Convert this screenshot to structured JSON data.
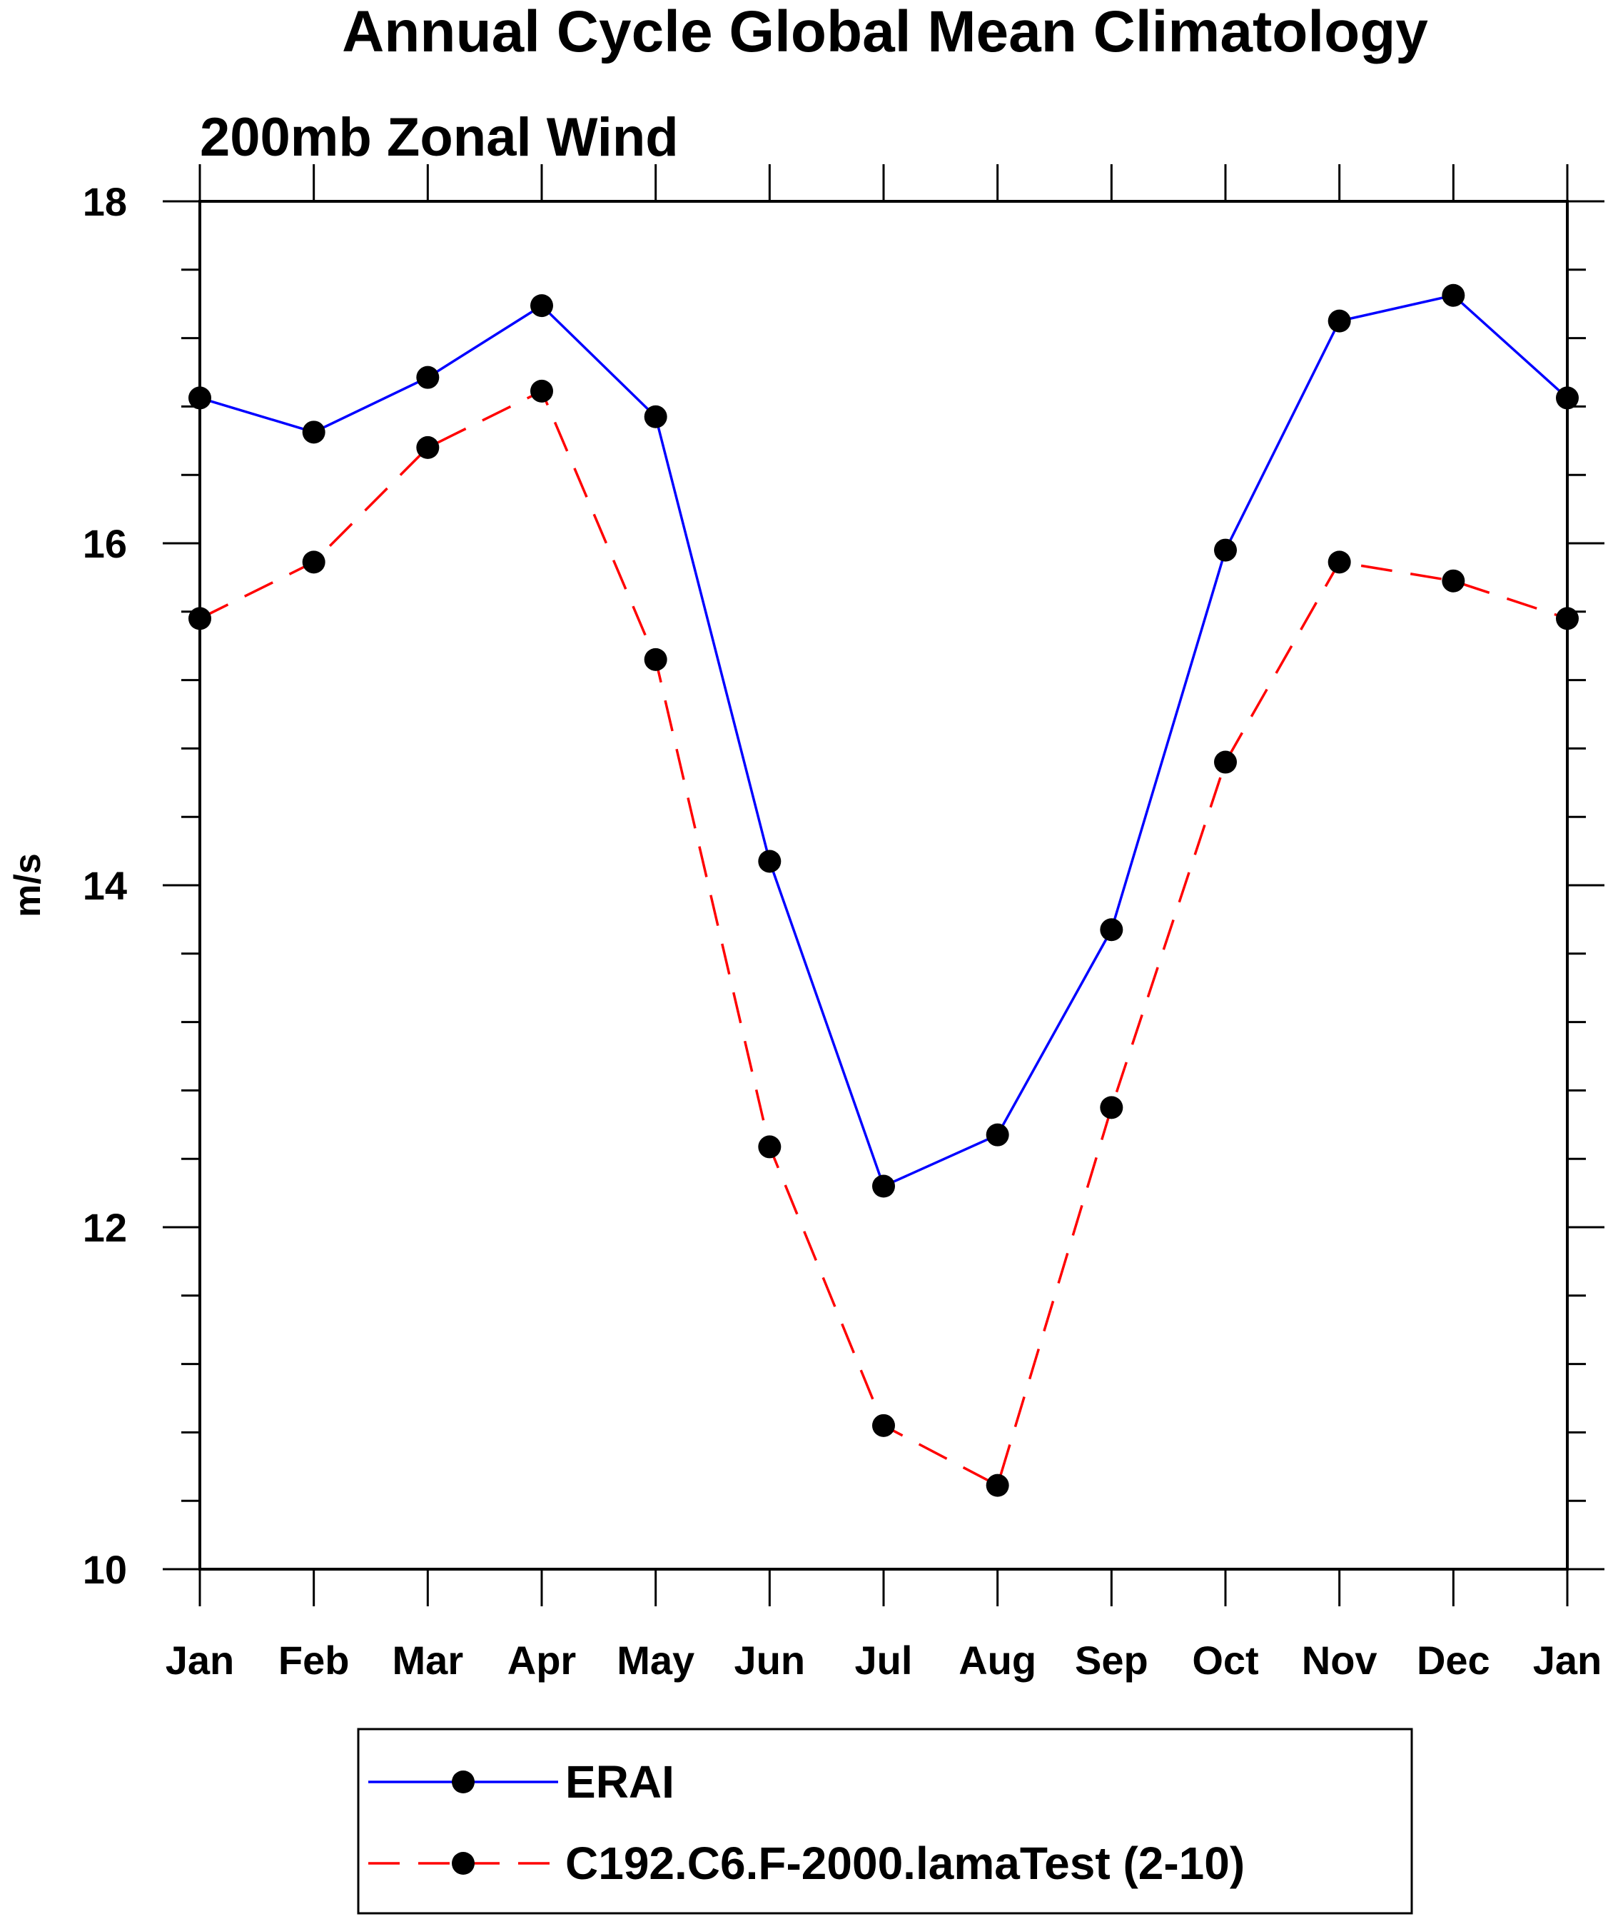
{
  "chart_data": {
    "type": "line",
    "title": "Annual Cycle Global Mean Climatology",
    "subtitle": "200mb Zonal Wind",
    "xlabel": "",
    "ylabel": "m/s",
    "categories": [
      "Jan",
      "Feb",
      "Mar",
      "Apr",
      "May",
      "Jun",
      "Jul",
      "Aug",
      "Sep",
      "Oct",
      "Nov",
      "Dec",
      "Jan"
    ],
    "ylim": [
      10,
      18
    ],
    "yticks": [
      "10",
      "12",
      "14",
      "16",
      "18"
    ],
    "legend_position": "bottom",
    "series": [
      {
        "name": "ERAI",
        "color": "#0000ff",
        "dash": "solid",
        "values": [
          16.85,
          16.65,
          16.97,
          17.39,
          16.74,
          14.14,
          12.24,
          12.54,
          13.74,
          15.96,
          17.3,
          17.45,
          16.85
        ]
      },
      {
        "name": "C192.C6.F-2000.lamaTest (2-10)",
        "color": "#ff0000",
        "dash": "dashed",
        "values": [
          15.56,
          15.89,
          16.56,
          16.89,
          15.32,
          12.47,
          10.84,
          10.49,
          12.7,
          14.72,
          15.89,
          15.78,
          15.56
        ]
      }
    ]
  }
}
